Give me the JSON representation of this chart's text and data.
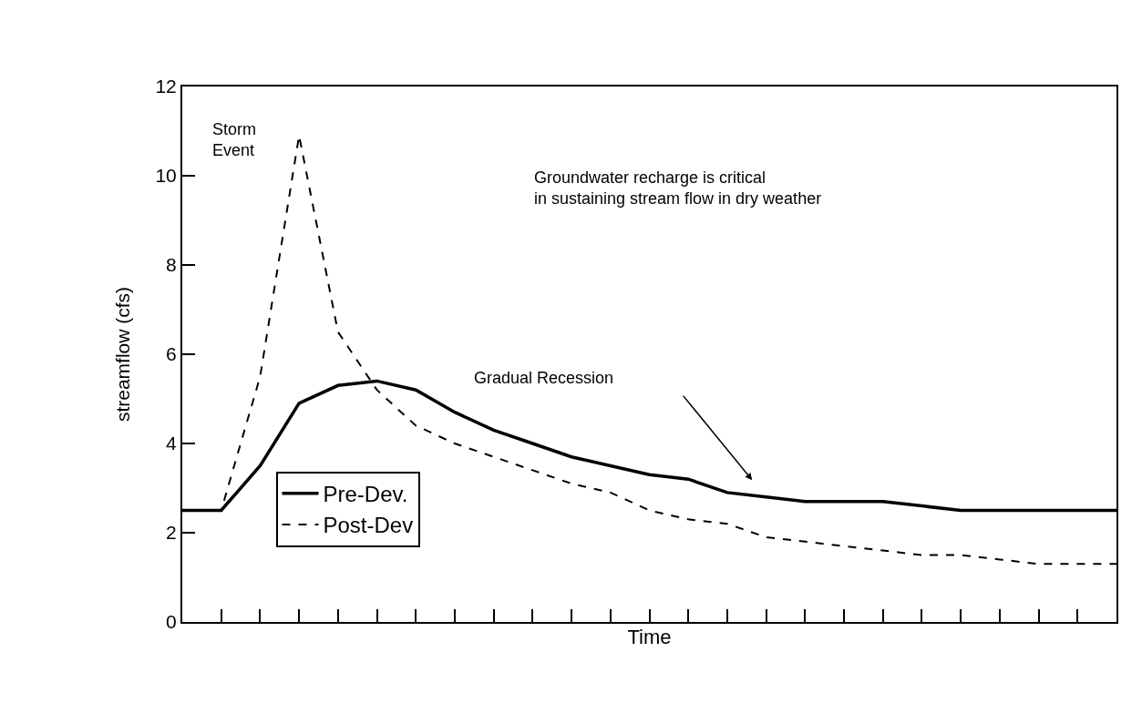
{
  "chart_data": {
    "type": "line",
    "xlabel": "Time",
    "ylabel": "streamflow (cfs)",
    "categories": [
      null,
      null,
      null,
      null,
      null,
      null,
      null,
      null,
      null,
      null,
      null,
      null,
      null,
      null,
      null,
      null,
      null,
      null,
      null,
      null,
      null,
      null,
      null,
      null,
      null
    ],
    "series": [
      {
        "name": "Pre-Dev.",
        "color": "#000000",
        "line_style": "solid",
        "values": [
          2.5,
          2.5,
          3.5,
          4.9,
          5.3,
          5.4,
          5.2,
          4.7,
          4.3,
          4.0,
          3.7,
          3.5,
          3.3,
          3.2,
          2.9,
          2.8,
          2.7,
          2.7,
          2.7,
          2.6,
          2.5,
          2.5,
          2.5,
          2.5,
          2.5
        ]
      },
      {
        "name": "Post-Dev",
        "color": "#000000",
        "line_style": "dashed",
        "values": [
          2.5,
          2.5,
          5.5,
          10.9,
          6.5,
          5.2,
          4.4,
          4.0,
          3.7,
          3.4,
          3.1,
          2.9,
          2.5,
          2.3,
          2.2,
          1.9,
          1.8,
          1.7,
          1.6,
          1.5,
          1.5,
          1.4,
          1.3,
          1.3,
          1.3
        ]
      }
    ],
    "ylim": [
      0,
      12
    ],
    "yticks": [
      0,
      2,
      4,
      6,
      8,
      10,
      12
    ],
    "legend": "bottom left",
    "marker": "none",
    "tick_labels": "y",
    "annotations": [
      "Storm\nEvent",
      "Groundwater recharge is critical\nin sustaining stream flow in dry weather",
      "Gradual Recession"
    ]
  }
}
